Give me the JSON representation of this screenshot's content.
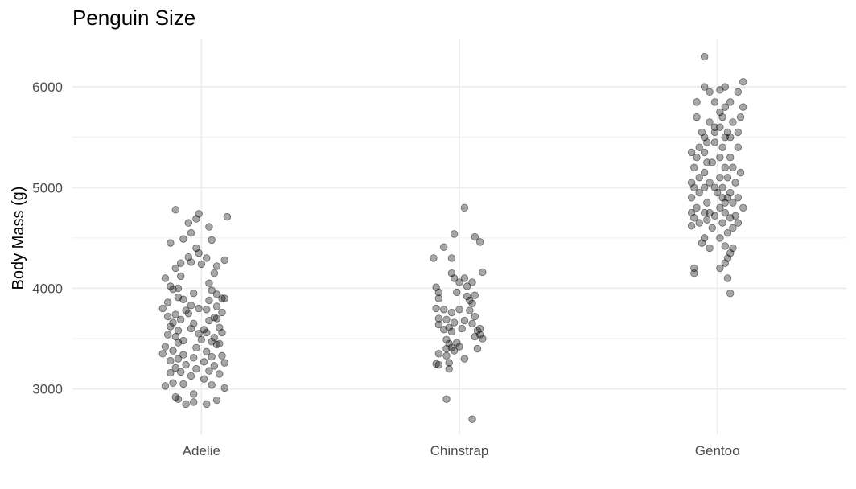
{
  "chart_data": {
    "type": "scatter",
    "title": "Penguin Size",
    "xlabel": "",
    "ylabel": "Body Mass (g)",
    "categories": [
      "Adelie",
      "Chinstrap",
      "Gentoo"
    ],
    "ylim": [
      2550,
      6480
    ],
    "yticks": [
      3000,
      4000,
      5000,
      6000
    ],
    "grid": true,
    "legend": "none",
    "point_color": "#000000",
    "series": [
      {
        "category": "Adelie",
        "points": [
          {
            "x": -0.1,
            "y": 4780
          },
          {
            "x": -0.01,
            "y": 4740
          },
          {
            "x": 0.1,
            "y": 4710
          },
          {
            "x": -0.02,
            "y": 4690
          },
          {
            "x": -0.05,
            "y": 4650
          },
          {
            "x": 0.03,
            "y": 4610
          },
          {
            "x": -0.04,
            "y": 4550
          },
          {
            "x": -0.07,
            "y": 4490
          },
          {
            "x": 0.04,
            "y": 4480
          },
          {
            "x": -0.12,
            "y": 4450
          },
          {
            "x": -0.02,
            "y": 4400
          },
          {
            "x": -0.01,
            "y": 4350
          },
          {
            "x": -0.05,
            "y": 4310
          },
          {
            "x": 0.02,
            "y": 4300
          },
          {
            "x": 0.09,
            "y": 4280
          },
          {
            "x": -0.04,
            "y": 4260
          },
          {
            "x": -0.08,
            "y": 4250
          },
          {
            "x": 0.0,
            "y": 4240
          },
          {
            "x": 0.06,
            "y": 4220
          },
          {
            "x": -0.1,
            "y": 4200
          },
          {
            "x": 0.05,
            "y": 4150
          },
          {
            "x": -0.08,
            "y": 4120
          },
          {
            "x": -0.14,
            "y": 4100
          },
          {
            "x": 0.03,
            "y": 4050
          },
          {
            "x": -0.12,
            "y": 4020
          },
          {
            "x": -0.09,
            "y": 4000
          },
          {
            "x": 0.04,
            "y": 3980
          },
          {
            "x": -0.03,
            "y": 3950
          },
          {
            "x": 0.06,
            "y": 3940
          },
          {
            "x": -0.09,
            "y": 3910
          },
          {
            "x": 0.08,
            "y": 3900
          },
          {
            "x": -0.07,
            "y": 3890
          },
          {
            "x": 0.03,
            "y": 3880
          },
          {
            "x": -0.13,
            "y": 3860
          },
          {
            "x": -0.04,
            "y": 3830
          },
          {
            "x": 0.06,
            "y": 3820
          },
          {
            "x": -0.15,
            "y": 3800
          },
          {
            "x": -0.01,
            "y": 3800
          },
          {
            "x": 0.02,
            "y": 3790
          },
          {
            "x": -0.06,
            "y": 3780
          },
          {
            "x": 0.08,
            "y": 3760
          },
          {
            "x": -0.1,
            "y": 3740
          },
          {
            "x": -0.13,
            "y": 3720
          },
          {
            "x": 0.05,
            "y": 3710
          },
          {
            "x": -0.08,
            "y": 3690
          },
          {
            "x": 0.03,
            "y": 3680
          },
          {
            "x": -0.11,
            "y": 3660
          },
          {
            "x": -0.03,
            "y": 3650
          },
          {
            "x": -0.12,
            "y": 3620
          },
          {
            "x": 0.07,
            "y": 3610
          },
          {
            "x": -0.04,
            "y": 3600
          },
          {
            "x": 0.01,
            "y": 3590
          },
          {
            "x": -0.09,
            "y": 3580
          },
          {
            "x": 0.08,
            "y": 3560
          },
          {
            "x": -0.01,
            "y": 3550
          },
          {
            "x": -0.13,
            "y": 3540
          },
          {
            "x": -0.1,
            "y": 3520
          },
          {
            "x": 0.05,
            "y": 3510
          },
          {
            "x": 0.0,
            "y": 3490
          },
          {
            "x": -0.07,
            "y": 3480
          },
          {
            "x": 0.04,
            "y": 3470
          },
          {
            "x": -0.09,
            "y": 3460
          },
          {
            "x": 0.07,
            "y": 3450
          },
          {
            "x": 0.06,
            "y": 3440
          },
          {
            "x": -0.14,
            "y": 3420
          },
          {
            "x": -0.02,
            "y": 3410
          },
          {
            "x": -0.11,
            "y": 3380
          },
          {
            "x": 0.02,
            "y": 3370
          },
          {
            "x": -0.15,
            "y": 3350
          },
          {
            "x": -0.07,
            "y": 3340
          },
          {
            "x": 0.08,
            "y": 3330
          },
          {
            "x": 0.04,
            "y": 3320
          },
          {
            "x": -0.03,
            "y": 3310
          },
          {
            "x": -0.09,
            "y": 3300
          },
          {
            "x": -0.12,
            "y": 3280
          },
          {
            "x": 0.01,
            "y": 3270
          },
          {
            "x": 0.09,
            "y": 3260
          },
          {
            "x": -0.06,
            "y": 3240
          },
          {
            "x": 0.05,
            "y": 3230
          },
          {
            "x": -0.1,
            "y": 3210
          },
          {
            "x": -0.02,
            "y": 3200
          },
          {
            "x": 0.03,
            "y": 3180
          },
          {
            "x": -0.08,
            "y": 3170
          },
          {
            "x": -0.12,
            "y": 3160
          },
          {
            "x": 0.07,
            "y": 3150
          },
          {
            "x": -0.04,
            "y": 3130
          },
          {
            "x": 0.01,
            "y": 3100
          },
          {
            "x": -0.11,
            "y": 3060
          },
          {
            "x": -0.07,
            "y": 3050
          },
          {
            "x": 0.04,
            "y": 3040
          },
          {
            "x": -0.14,
            "y": 3030
          },
          {
            "x": 0.09,
            "y": 3010
          },
          {
            "x": -0.03,
            "y": 2950
          },
          {
            "x": -0.1,
            "y": 2920
          },
          {
            "x": -0.09,
            "y": 2900
          },
          {
            "x": 0.06,
            "y": 2890
          },
          {
            "x": -0.03,
            "y": 2870
          },
          {
            "x": -0.06,
            "y": 2850
          },
          {
            "x": 0.02,
            "y": 2850
          },
          {
            "x": 0.02,
            "y": 3560
          },
          {
            "x": -0.05,
            "y": 3750
          },
          {
            "x": 0.06,
            "y": 3700
          },
          {
            "x": -0.11,
            "y": 3990
          },
          {
            "x": 0.09,
            "y": 3900
          }
        ]
      },
      {
        "category": "Chinstrap",
        "points": [
          {
            "x": 0.02,
            "y": 4800
          },
          {
            "x": -0.02,
            "y": 4540
          },
          {
            "x": 0.06,
            "y": 4510
          },
          {
            "x": 0.08,
            "y": 4460
          },
          {
            "x": -0.06,
            "y": 4410
          },
          {
            "x": -0.1,
            "y": 4300
          },
          {
            "x": -0.03,
            "y": 4300
          },
          {
            "x": 0.09,
            "y": 4160
          },
          {
            "x": -0.03,
            "y": 4150
          },
          {
            "x": -0.02,
            "y": 4100
          },
          {
            "x": 0.02,
            "y": 4100
          },
          {
            "x": 0.0,
            "y": 4060
          },
          {
            "x": 0.05,
            "y": 4060
          },
          {
            "x": -0.09,
            "y": 4010
          },
          {
            "x": 0.03,
            "y": 4020
          },
          {
            "x": -0.08,
            "y": 3960
          },
          {
            "x": -0.01,
            "y": 3960
          },
          {
            "x": 0.03,
            "y": 3920
          },
          {
            "x": -0.08,
            "y": 3900
          },
          {
            "x": 0.04,
            "y": 3880
          },
          {
            "x": 0.05,
            "y": 3850
          },
          {
            "x": -0.09,
            "y": 3800
          },
          {
            "x": -0.06,
            "y": 3790
          },
          {
            "x": 0.0,
            "y": 3790
          },
          {
            "x": 0.04,
            "y": 3780
          },
          {
            "x": -0.03,
            "y": 3760
          },
          {
            "x": -0.08,
            "y": 3700
          },
          {
            "x": 0.06,
            "y": 3720
          },
          {
            "x": -0.05,
            "y": 3690
          },
          {
            "x": 0.02,
            "y": 3680
          },
          {
            "x": -0.02,
            "y": 3660
          },
          {
            "x": -0.08,
            "y": 3640
          },
          {
            "x": 0.05,
            "y": 3650
          },
          {
            "x": -0.04,
            "y": 3610
          },
          {
            "x": 0.08,
            "y": 3600
          },
          {
            "x": 0.01,
            "y": 3600
          },
          {
            "x": -0.06,
            "y": 3590
          },
          {
            "x": 0.07,
            "y": 3580
          },
          {
            "x": -0.03,
            "y": 3570
          },
          {
            "x": 0.08,
            "y": 3540
          },
          {
            "x": 0.06,
            "y": 3520
          },
          {
            "x": 0.09,
            "y": 3500
          },
          {
            "x": -0.05,
            "y": 3490
          },
          {
            "x": -0.01,
            "y": 3460
          },
          {
            "x": -0.04,
            "y": 3450
          },
          {
            "x": 0.0,
            "y": 3420
          },
          {
            "x": -0.03,
            "y": 3410
          },
          {
            "x": -0.05,
            "y": 3400
          },
          {
            "x": 0.07,
            "y": 3400
          },
          {
            "x": -0.02,
            "y": 3380
          },
          {
            "x": -0.08,
            "y": 3350
          },
          {
            "x": -0.05,
            "y": 3330
          },
          {
            "x": 0.02,
            "y": 3300
          },
          {
            "x": -0.09,
            "y": 3250
          },
          {
            "x": -0.04,
            "y": 3260
          },
          {
            "x": -0.08,
            "y": 3240
          },
          {
            "x": -0.04,
            "y": 3200
          },
          {
            "x": -0.05,
            "y": 2900
          },
          {
            "x": 0.06,
            "y": 3930
          },
          {
            "x": 0.05,
            "y": 2700
          }
        ]
      },
      {
        "category": "Gentoo",
        "points": [
          {
            "x": -0.05,
            "y": 6300
          },
          {
            "x": 0.1,
            "y": 6050
          },
          {
            "x": -0.05,
            "y": 6000
          },
          {
            "x": 0.03,
            "y": 6000
          },
          {
            "x": -0.03,
            "y": 5950
          },
          {
            "x": 0.01,
            "y": 5970
          },
          {
            "x": 0.08,
            "y": 5950
          },
          {
            "x": -0.01,
            "y": 5850
          },
          {
            "x": -0.08,
            "y": 5850
          },
          {
            "x": 0.05,
            "y": 5850
          },
          {
            "x": 0.03,
            "y": 5800
          },
          {
            "x": 0.1,
            "y": 5800
          },
          {
            "x": 0.01,
            "y": 5750
          },
          {
            "x": -0.08,
            "y": 5700
          },
          {
            "x": 0.02,
            "y": 5700
          },
          {
            "x": 0.09,
            "y": 5700
          },
          {
            "x": -0.03,
            "y": 5650
          },
          {
            "x": 0.06,
            "y": 5650
          },
          {
            "x": -0.01,
            "y": 5600
          },
          {
            "x": 0.01,
            "y": 5600
          },
          {
            "x": -0.01,
            "y": 5550
          },
          {
            "x": 0.04,
            "y": 5550
          },
          {
            "x": 0.08,
            "y": 5550
          },
          {
            "x": -0.05,
            "y": 5500
          },
          {
            "x": 0.03,
            "y": 5500
          },
          {
            "x": 0.05,
            "y": 5500
          },
          {
            "x": -0.04,
            "y": 5450
          },
          {
            "x": -0.01,
            "y": 5450
          },
          {
            "x": -0.07,
            "y": 5400
          },
          {
            "x": 0.02,
            "y": 5400
          },
          {
            "x": 0.08,
            "y": 5400
          },
          {
            "x": -0.1,
            "y": 5350
          },
          {
            "x": -0.05,
            "y": 5350
          },
          {
            "x": 0.01,
            "y": 5300
          },
          {
            "x": 0.05,
            "y": 5300
          },
          {
            "x": -0.08,
            "y": 5300
          },
          {
            "x": -0.04,
            "y": 5250
          },
          {
            "x": -0.02,
            "y": 5250
          },
          {
            "x": -0.09,
            "y": 5200
          },
          {
            "x": 0.03,
            "y": 5200
          },
          {
            "x": 0.06,
            "y": 5200
          },
          {
            "x": -0.05,
            "y": 5150
          },
          {
            "x": -0.07,
            "y": 5100
          },
          {
            "x": 0.01,
            "y": 5100
          },
          {
            "x": 0.04,
            "y": 5100
          },
          {
            "x": -0.1,
            "y": 5050
          },
          {
            "x": 0.07,
            "y": 5050
          },
          {
            "x": -0.03,
            "y": 5050
          },
          {
            "x": -0.09,
            "y": 5000
          },
          {
            "x": -0.05,
            "y": 5000
          },
          {
            "x": -0.01,
            "y": 5000
          },
          {
            "x": 0.02,
            "y": 5000
          },
          {
            "x": 0.05,
            "y": 4950
          },
          {
            "x": -0.07,
            "y": 4950
          },
          {
            "x": 0.0,
            "y": 4950
          },
          {
            "x": 0.04,
            "y": 4900
          },
          {
            "x": -0.1,
            "y": 4900
          },
          {
            "x": 0.08,
            "y": 4900
          },
          {
            "x": -0.04,
            "y": 4850
          },
          {
            "x": 0.03,
            "y": 4850
          },
          {
            "x": 0.06,
            "y": 4850
          },
          {
            "x": -0.08,
            "y": 4800
          },
          {
            "x": 0.01,
            "y": 4800
          },
          {
            "x": 0.1,
            "y": 4800
          },
          {
            "x": -0.05,
            "y": 4750
          },
          {
            "x": -0.1,
            "y": 4750
          },
          {
            "x": 0.03,
            "y": 4750
          },
          {
            "x": -0.01,
            "y": 4720
          },
          {
            "x": 0.07,
            "y": 4720
          },
          {
            "x": -0.09,
            "y": 4700
          },
          {
            "x": 0.05,
            "y": 4700
          },
          {
            "x": -0.04,
            "y": 4680
          },
          {
            "x": -0.07,
            "y": 4650
          },
          {
            "x": 0.02,
            "y": 4650
          },
          {
            "x": 0.08,
            "y": 4650
          },
          {
            "x": -0.1,
            "y": 4620
          },
          {
            "x": 0.06,
            "y": 4600
          },
          {
            "x": -0.02,
            "y": 4600
          },
          {
            "x": 0.04,
            "y": 4550
          },
          {
            "x": -0.05,
            "y": 4500
          },
          {
            "x": 0.01,
            "y": 4500
          },
          {
            "x": -0.06,
            "y": 4450
          },
          {
            "x": 0.03,
            "y": 4420
          },
          {
            "x": -0.03,
            "y": 4400
          },
          {
            "x": 0.06,
            "y": 4400
          },
          {
            "x": 0.05,
            "y": 4350
          },
          {
            "x": 0.04,
            "y": 4300
          },
          {
            "x": 0.03,
            "y": 4250
          },
          {
            "x": 0.01,
            "y": 4200
          },
          {
            "x": -0.09,
            "y": 4200
          },
          {
            "x": -0.09,
            "y": 4150
          },
          {
            "x": 0.04,
            "y": 4100
          },
          {
            "x": 0.05,
            "y": 3950
          },
          {
            "x": -0.03,
            "y": 4750
          },
          {
            "x": 0.09,
            "y": 5150
          },
          {
            "x": -0.06,
            "y": 5550
          },
          {
            "x": 0.02,
            "y": 4900
          }
        ]
      }
    ]
  }
}
